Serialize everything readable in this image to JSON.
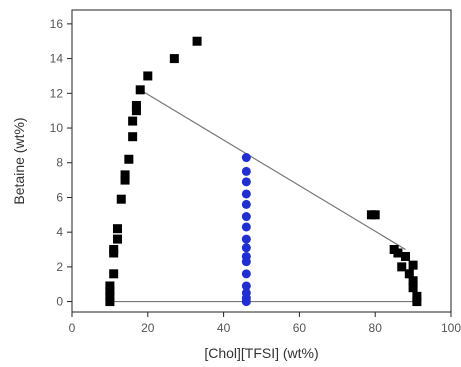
{
  "chart_data": {
    "type": "scatter",
    "title": "",
    "xlabel": "[Chol][TFSI] (wt%)",
    "ylabel": "Betaine (wt%)",
    "xlim": [
      0,
      100
    ],
    "ylim": [
      -0.6,
      16.8
    ],
    "xticks": [
      0,
      20,
      40,
      60,
      80,
      100
    ],
    "yticks": [
      0,
      2,
      4,
      6,
      8,
      10,
      12,
      14,
      16
    ],
    "grid": false,
    "legend": "none",
    "series": [
      {
        "marker": "square",
        "color": "#000000",
        "points": [
          [
            10,
            0.0
          ],
          [
            10,
            0.3
          ],
          [
            10,
            0.6
          ],
          [
            10,
            0.9
          ],
          [
            11,
            1.6
          ],
          [
            11,
            2.8
          ],
          [
            11,
            3.0
          ],
          [
            12,
            3.6
          ],
          [
            12,
            4.2
          ],
          [
            13,
            5.9
          ],
          [
            14,
            7.0
          ],
          [
            14,
            7.3
          ],
          [
            15,
            8.2
          ],
          [
            16,
            9.5
          ],
          [
            16,
            10.4
          ],
          [
            17,
            11.0
          ],
          [
            17,
            11.3
          ],
          [
            18,
            12.2
          ],
          [
            20,
            13.0
          ],
          [
            27,
            14.0
          ],
          [
            33,
            15.0
          ],
          [
            79,
            5.0
          ],
          [
            80,
            5.0
          ],
          [
            85,
            3.0
          ],
          [
            86,
            2.8
          ],
          [
            88,
            2.6
          ],
          [
            87,
            2.0
          ],
          [
            89,
            1.6
          ],
          [
            90,
            2.1
          ],
          [
            90,
            1.2
          ],
          [
            90,
            0.8
          ],
          [
            91,
            0.3
          ],
          [
            91,
            0.0
          ]
        ]
      },
      {
        "marker": "circle",
        "color": "#1f2fd1",
        "points": [
          [
            46,
            0.0
          ],
          [
            46,
            0.2
          ],
          [
            46,
            0.5
          ],
          [
            46,
            0.9
          ],
          [
            46,
            1.6
          ],
          [
            46,
            2.3
          ],
          [
            46,
            2.6
          ],
          [
            46,
            3.1
          ],
          [
            46,
            3.6
          ],
          [
            46,
            4.3
          ],
          [
            46,
            4.9
          ],
          [
            46,
            5.6
          ],
          [
            46,
            6.2
          ],
          [
            46,
            6.9
          ],
          [
            46,
            7.5
          ],
          [
            46,
            8.3
          ]
        ]
      }
    ],
    "lines": [
      {
        "x": [
          18,
          88
        ],
        "y": [
          12.2,
          3.0
        ],
        "color": "#777777"
      },
      {
        "x": [
          10,
          91
        ],
        "y": [
          0.0,
          0.0
        ],
        "color": "#777777"
      }
    ]
  }
}
